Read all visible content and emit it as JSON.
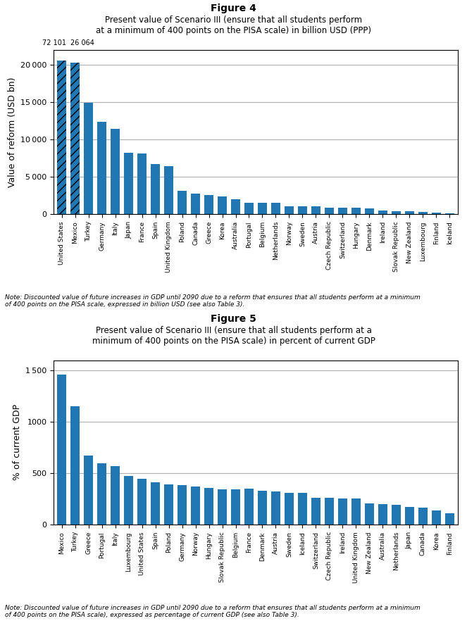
{
  "chart_data": [
    {
      "type": "bar",
      "title": "Figure 4",
      "subtitle": "Present value of Scenario III (ensure that all students perform\nat a minimum of 400 points on the PISA scale) in billion USD (PPP)",
      "ylabel": "Value of reform (USD bn)",
      "note": "Note: Discounted value of future increases in GDP until 2090 due to a reform that ensures that all students perform at a minimum\nof 400 points on the PISA scale, expressed in billion USD (see also Table 3).",
      "categories": [
        "United States",
        "Mexico",
        "Turkey",
        "Germany",
        "Italy",
        "Japan",
        "France",
        "Spain",
        "United Kingdom",
        "Poland",
        "Canada",
        "Greece",
        "Korea",
        "Australia",
        "Portugal",
        "Belgium",
        "Netherlands",
        "Norway",
        "Sweden",
        "Austria",
        "Czech Republic",
        "Switzerland",
        "Hungary",
        "Denmark",
        "Ireland",
        "Slovak Republic",
        "New Zealand",
        "Luxembourg",
        "Finland",
        "Iceland"
      ],
      "values": [
        20500,
        20300,
        14900,
        12400,
        11400,
        8200,
        8150,
        6700,
        6450,
        3100,
        2750,
        2600,
        2400,
        2000,
        1550,
        1500,
        1500,
        1100,
        1050,
        1050,
        900,
        850,
        850,
        800,
        500,
        450,
        380,
        300,
        200,
        120
      ],
      "annotations": [
        {
          "category": "United States",
          "text": "72 101"
        },
        {
          "category": "Mexico",
          "text": "26 064"
        }
      ],
      "ylim": [
        0,
        22000
      ],
      "yticks": [
        0,
        {
          "value": 5000,
          "label": "5 000"
        },
        {
          "value": 10000,
          "label": "10 000"
        },
        {
          "value": 15000,
          "label": "15 000"
        },
        {
          "value": 20000,
          "label": "20 000"
        }
      ],
      "grid": true
    },
    {
      "type": "bar",
      "title": "Figure 5",
      "subtitle": "Present value of Scenario III (ensure that all students perform at a\nminimum of 400 points on the PISA scale) in percent of current GDP",
      "ylabel": "% of current GDP",
      "note": "Note: Discounted value of future increases in GDP until 2090 due to a reform that ensures that all students perform at a minimum\nof 400 points on the PISA scale), expressed as percentage of current GDP (see also Table 3).",
      "categories": [
        "Mexico",
        "Turkey",
        "Greece",
        "Portugal",
        "Italy",
        "Luxembourg",
        "United States",
        "Spain",
        "Poland",
        "Germany",
        "Norway",
        "Hungary",
        "Slovak Republic",
        "Belgium",
        "France",
        "Denmark",
        "Austria",
        "Sweden",
        "Iceland",
        "Switzerland",
        "Czech Republic",
        "Ireland",
        "United Kingdom",
        "New Zealand",
        "Australia",
        "Netherlands",
        "Japan",
        "Canada",
        "Korea",
        "Finland"
      ],
      "values": [
        1460,
        1155,
        670,
        600,
        570,
        475,
        445,
        415,
        395,
        385,
        370,
        360,
        345,
        345,
        350,
        330,
        325,
        310,
        308,
        265,
        262,
        258,
        255,
        210,
        200,
        195,
        170,
        165,
        140,
        110
      ],
      "ylim": [
        0,
        1600
      ],
      "yticks": [
        0,
        500,
        1000,
        {
          "value": 1500,
          "label": "1 500"
        }
      ],
      "grid": true
    }
  ]
}
